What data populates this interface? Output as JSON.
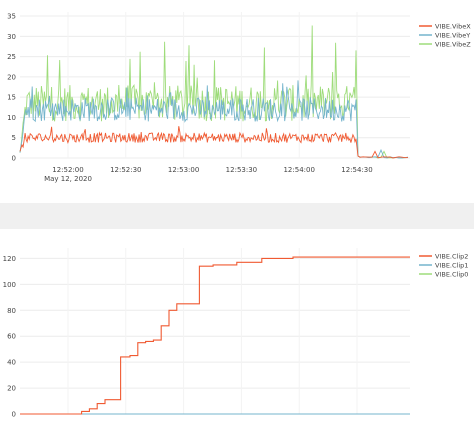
{
  "chart_data": [
    {
      "type": "line",
      "name": "vibration",
      "x_ticks": [
        "12:52:00",
        "12:52:30",
        "12:53:00",
        "12:53:30",
        "12:54:00",
        "12:54:30"
      ],
      "x_date_label": "May 12, 2020",
      "y_ticks": [
        0,
        5,
        10,
        15,
        20,
        25,
        30,
        35
      ],
      "ylim": [
        0,
        36
      ],
      "grid": true,
      "legend_position": "top-right",
      "series": [
        {
          "name": "VIBE.VibeX",
          "color": "#f05a32"
        },
        {
          "name": "VIBE.VibeY",
          "color": "#74b4cc"
        },
        {
          "name": "VIBE.VibeZ",
          "color": "#9edc7a"
        }
      ]
    },
    {
      "type": "line",
      "name": "clip",
      "y_ticks": [
        0,
        20,
        40,
        60,
        80,
        100,
        120
      ],
      "ylim": [
        0,
        128
      ],
      "grid": true,
      "legend_position": "top-right",
      "series": [
        {
          "name": "VIBE.Clip2",
          "color": "#f05a32",
          "x": [
            0,
            0.138,
            0.158,
            0.178,
            0.198,
            0.218,
            0.238,
            0.258,
            0.282,
            0.302,
            0.322,
            0.342,
            0.362,
            0.382,
            0.402,
            0.43,
            0.46,
            0.495,
            0.556,
            0.62,
            0.7,
            0.8,
            0.9,
            1.0
          ],
          "values": [
            0,
            0,
            2,
            4,
            8,
            11,
            11,
            44,
            45,
            55,
            56,
            57,
            68,
            80,
            85,
            85,
            114,
            115,
            117,
            120,
            121,
            121,
            121,
            121
          ]
        },
        {
          "name": "VIBE.Clip1",
          "color": "#74b4cc",
          "x": [
            0,
            1
          ],
          "values": [
            0,
            0
          ]
        },
        {
          "name": "VIBE.Clip0",
          "color": "#9edc7a",
          "x": [
            0,
            1
          ],
          "values": [
            0,
            0
          ]
        }
      ]
    }
  ]
}
